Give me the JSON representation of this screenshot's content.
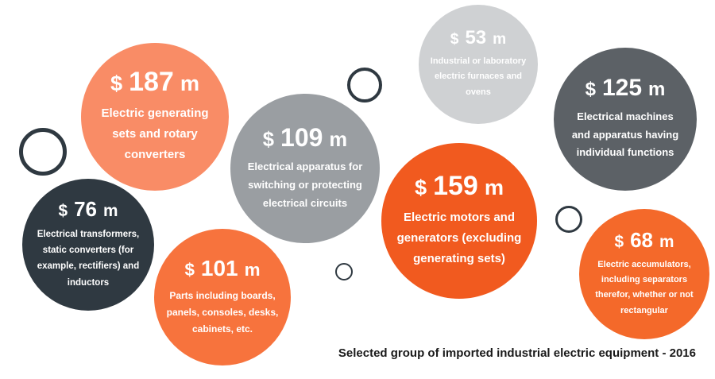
{
  "chart_data": {
    "type": "bubble",
    "title": "Selected group of imported industrial electric equipment - 2016",
    "currency": "$",
    "unit": "m",
    "items": [
      {
        "value": 187,
        "label": "Electric generating sets and rotary converters",
        "color": "#f98c66"
      },
      {
        "value": 53,
        "label": "Industrial or laboratory electric furnaces and ovens",
        "color": "#cfd1d3"
      },
      {
        "value": 125,
        "label": "Electrical machines and apparatus having individual functions",
        "color": "#5c6166"
      },
      {
        "value": 109,
        "label": "Electrical apparatus for switching or protecting electrical circuits",
        "color": "#9a9ea2"
      },
      {
        "value": 159,
        "label": "Electric motors and generators (excluding generating sets)",
        "color": "#f15a1f"
      },
      {
        "value": 76,
        "label": "Electrical transformers, static converters (for example, rectifiers) and inductors",
        "color": "#2f3941"
      },
      {
        "value": 101,
        "label": "Parts including boards, panels, consoles, desks, cabinets, etc.",
        "color": "#f7733d"
      },
      {
        "value": 68,
        "label": "Electric accumulators, including separators therefor, whether or not rectangular",
        "color": "#f4692a"
      }
    ]
  }
}
